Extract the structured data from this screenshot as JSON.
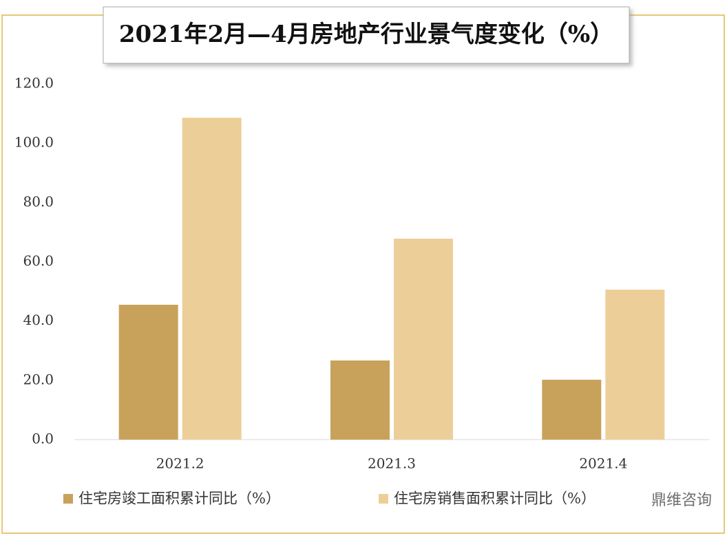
{
  "chart_data": {
    "type": "bar",
    "title": "2021年2月—4月房地产行业景气度变化（%）",
    "categories": [
      "2021.2",
      "2021.3",
      "2021.4"
    ],
    "series": [
      {
        "name": "住宅房竣工面积累计同比（%）",
        "color": "#c8a25a",
        "values": [
          45.5,
          26.7,
          20.2
        ]
      },
      {
        "name": "住宅房销售面积累计同比（%）",
        "color": "#eccf98",
        "values": [
          108.6,
          67.8,
          50.6
        ]
      }
    ],
    "ylim": [
      0,
      120
    ],
    "yticks": [
      {
        "value": 0,
        "label": "0.0"
      },
      {
        "value": 20,
        "label": "20.0"
      },
      {
        "value": 40,
        "label": "40.0"
      },
      {
        "value": 60,
        "label": "60.0"
      },
      {
        "value": 80,
        "label": "80.0"
      },
      {
        "value": 100,
        "label": "100.0"
      },
      {
        "value": 120,
        "label": "120.0"
      }
    ],
    "grid": false,
    "legend": "bottom",
    "watermark": "鼎维咨询"
  }
}
